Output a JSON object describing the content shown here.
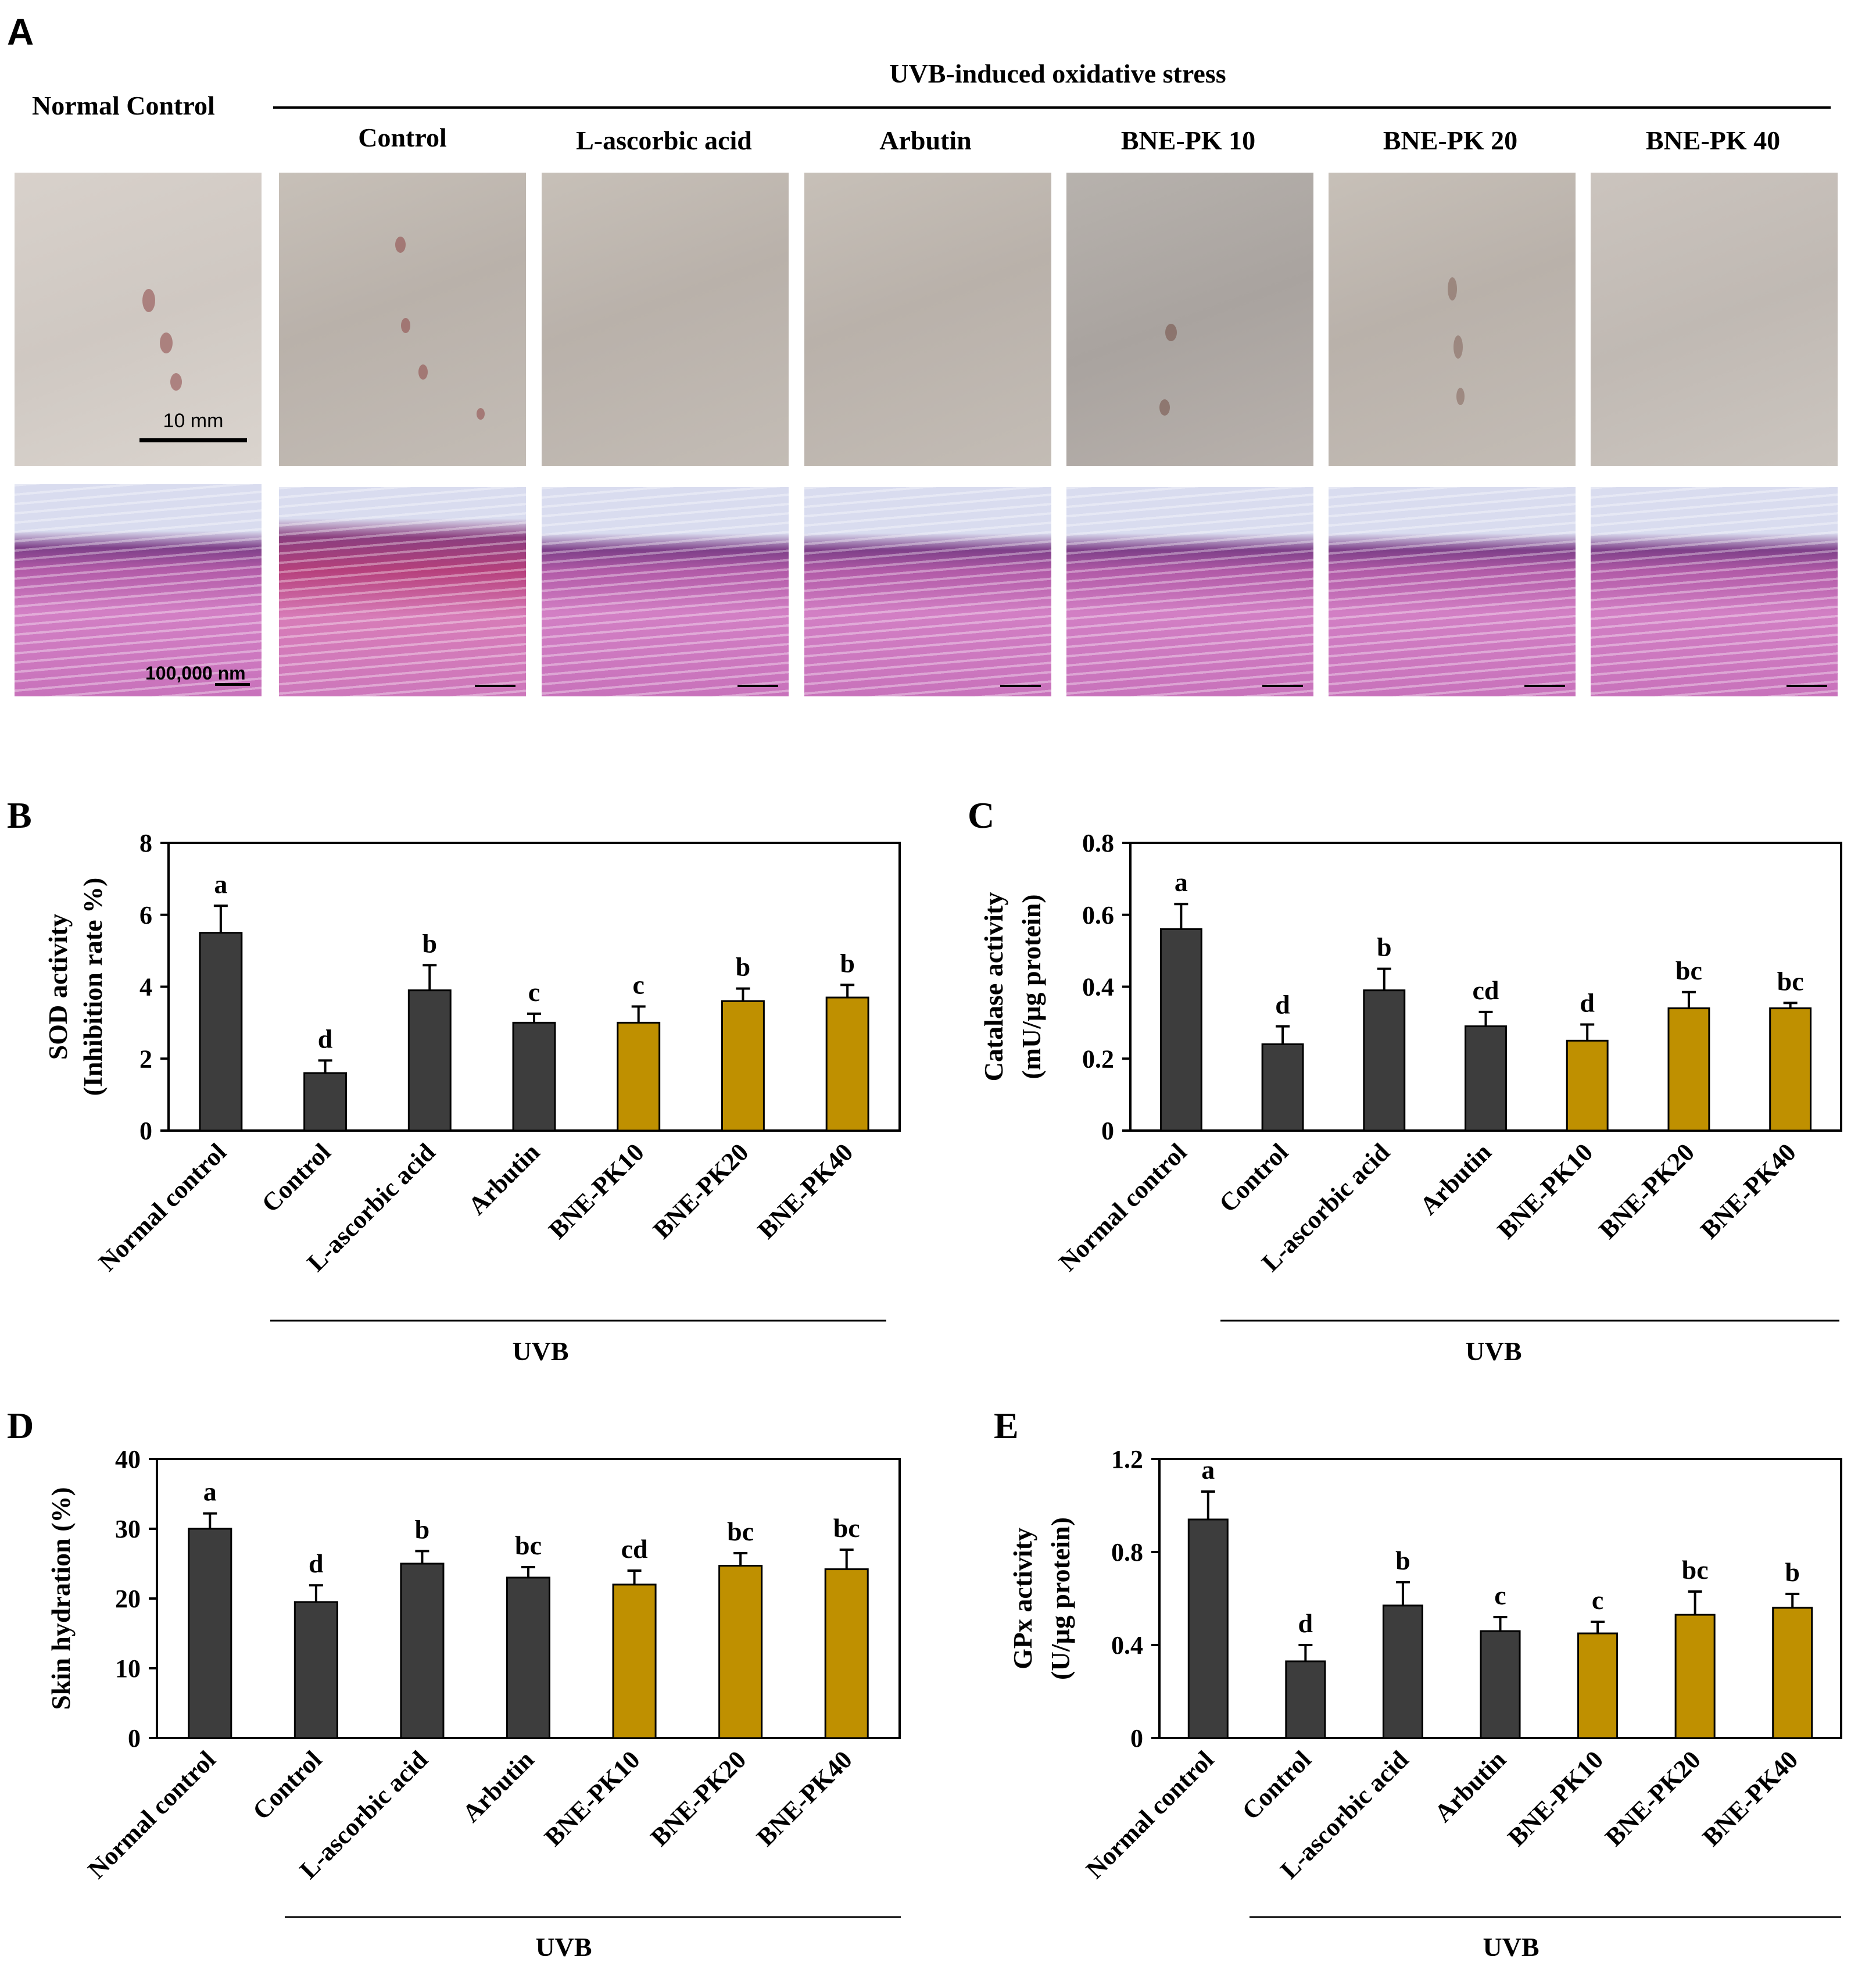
{
  "panel_a": {
    "letter": "A",
    "normal_control_label": "Normal Control",
    "uvb_group_label": "UVB-induced oxidative stress",
    "columns": [
      "Control",
      "L-ascorbic acid",
      "Arbutin",
      "BNE-PK 10",
      "BNE-PK 20",
      "BNE-PK 40"
    ],
    "scale_photo": "10 mm",
    "scale_histo": "100,000 nm",
    "scale_histo_small": "100,000 nm"
  },
  "colors": {
    "dark_bar": "#3d3d3d",
    "gold_bar": "#bf9000",
    "axis": "#000000"
  },
  "chart_data": [
    {
      "id": "B",
      "type": "bar",
      "letter": "B",
      "categories": [
        "Normal control",
        "Control",
        "L-ascorbic acid",
        "Arbutin",
        "BNE-PK10",
        "BNE-PK20",
        "BNE-PK40"
      ],
      "values": [
        5.5,
        1.6,
        3.9,
        3.0,
        3.0,
        3.6,
        3.7
      ],
      "errors": [
        0.75,
        0.35,
        0.7,
        0.25,
        0.45,
        0.35,
        0.35
      ],
      "letters": [
        "a",
        "d",
        "b",
        "c",
        "c",
        "b",
        "b"
      ],
      "bar_colors": [
        "dark",
        "dark",
        "dark",
        "dark",
        "gold",
        "gold",
        "gold"
      ],
      "ylim": [
        0,
        8
      ],
      "yticks": [
        "0",
        "2",
        "4",
        "6",
        "8"
      ],
      "ylabel_line1": "SOD activity",
      "ylabel_line2": "(Inhibition rate %)",
      "group_label": "UVB"
    },
    {
      "id": "C",
      "type": "bar",
      "letter": "C",
      "categories": [
        "Normal control",
        "Control",
        "L-ascorbic acid",
        "Arbutin",
        "BNE-PK10",
        "BNE-PK20",
        "BNE-PK40"
      ],
      "values": [
        0.56,
        0.24,
        0.39,
        0.29,
        0.25,
        0.34,
        0.34
      ],
      "errors": [
        0.07,
        0.05,
        0.06,
        0.04,
        0.045,
        0.045,
        0.015
      ],
      "letters": [
        "a",
        "d",
        "b",
        "cd",
        "d",
        "bc",
        "bc"
      ],
      "bar_colors": [
        "dark",
        "dark",
        "dark",
        "dark",
        "gold",
        "gold",
        "gold"
      ],
      "ylim": [
        0,
        0.8
      ],
      "yticks": [
        "0",
        "0.2",
        "0.4",
        "0.6",
        "0.8"
      ],
      "ylabel_line1": "Catalase activity",
      "ylabel_line2": "(mU/µg protein)",
      "group_label": "UVB"
    },
    {
      "id": "D",
      "type": "bar",
      "letter": "D",
      "categories": [
        "Normal control",
        "Control",
        "L-ascorbic acid",
        "Arbutin",
        "BNE-PK10",
        "BNE-PK20",
        "BNE-PK40"
      ],
      "values": [
        30,
        19.5,
        25,
        23,
        22,
        24.7,
        24.2
      ],
      "errors": [
        2.2,
        2.4,
        1.8,
        1.5,
        2.0,
        1.8,
        2.8
      ],
      "letters": [
        "a",
        "d",
        "b",
        "bc",
        "cd",
        "bc",
        "bc"
      ],
      "bar_colors": [
        "dark",
        "dark",
        "dark",
        "dark",
        "gold",
        "gold",
        "gold"
      ],
      "ylim": [
        0,
        40
      ],
      "yticks": [
        "0",
        "10",
        "20",
        "30",
        "40"
      ],
      "ylabel_line1": "Skin hydration  (%)",
      "ylabel_line2": "",
      "group_label": "UVB"
    },
    {
      "id": "E",
      "type": "bar",
      "letter": "E",
      "categories": [
        "Normal control",
        "Control",
        "L-ascorbic acid",
        "Arbutin",
        "BNE-PK10",
        "BNE-PK20",
        "BNE-PK40"
      ],
      "values": [
        0.94,
        0.33,
        0.57,
        0.46,
        0.45,
        0.53,
        0.56
      ],
      "errors": [
        0.12,
        0.07,
        0.1,
        0.06,
        0.05,
        0.1,
        0.06
      ],
      "letters": [
        "a",
        "d",
        "b",
        "c",
        "c",
        "bc",
        "b"
      ],
      "bar_colors": [
        "dark",
        "dark",
        "dark",
        "dark",
        "gold",
        "gold",
        "gold"
      ],
      "ylim": [
        0,
        1.2
      ],
      "yticks": [
        "0",
        "0.4",
        "0.8",
        "1.2"
      ],
      "ylabel_line1": "GPx activity",
      "ylabel_line2": "(U/µg protein)",
      "group_label": "UVB"
    }
  ]
}
